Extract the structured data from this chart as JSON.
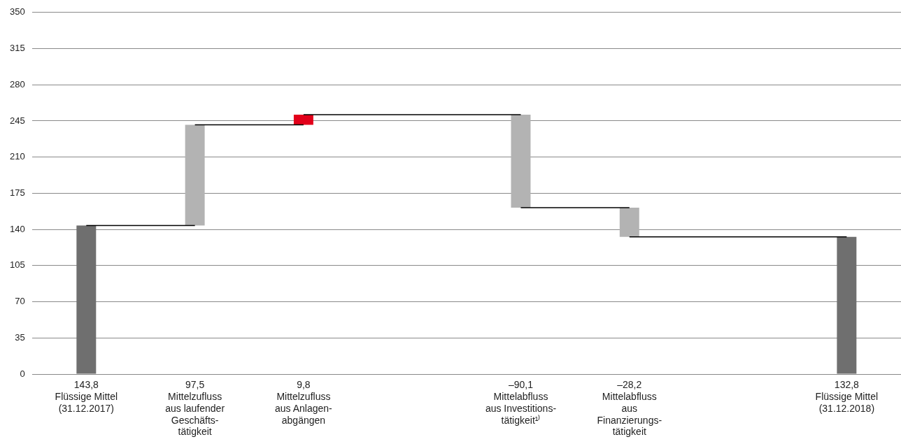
{
  "chart_data": {
    "type": "bar",
    "categories": [
      "Flüssige Mittel\n(31.12.2017)",
      "Mittelzufluss\naus laufender\nGeschäfts-\ntätigkeit",
      "Mittelzufluss\naus Anlagen-\nabgängen",
      null,
      "Mittelabfluss\naus Investitions-\ntätigkeit¹⁾",
      "Mittelabfluss\naus\nFinanzierungs-\ntätigkeit",
      null,
      "Flüssige Mittel\n(31.12.2018)"
    ],
    "series": [
      {
        "type": "bar",
        "values": [
          143.8,
          97.5,
          9.8,
          null,
          -90.1,
          -28.2,
          null,
          132.8
        ],
        "base": [
          0,
          143.8,
          241.3,
          null,
          251.1,
          161,
          null,
          0
        ],
        "colors": [
          "#6f6f6f",
          "#b3b3b3",
          "#e2001a",
          null,
          "#b3b3b3",
          "#b3b3b3",
          null,
          "#6f6f6f"
        ],
        "value_labels": [
          "143,8",
          "97,5",
          "9,8",
          null,
          "–90,1",
          "–28,2",
          null,
          "132,8"
        ]
      },
      {
        "type": "line",
        "color": "#000000",
        "values": [
          143.8,
          143.8,
          null,
          null,
          null,
          null,
          null,
          null
        ]
      },
      {
        "type": "line",
        "color": "#000000",
        "values": [
          null,
          241.3,
          241.3,
          null,
          null,
          null,
          null,
          null
        ]
      },
      {
        "type": "line",
        "color": "#000000",
        "values": [
          null,
          null,
          251.1,
          251.1,
          251.1,
          null,
          null,
          null
        ]
      },
      {
        "type": "line",
        "color": "#000000",
        "values": [
          null,
          null,
          null,
          null,
          161,
          161,
          null,
          null
        ]
      },
      {
        "type": "line",
        "color": "#000000",
        "values": [
          null,
          null,
          null,
          null,
          null,
          132.8,
          132.8,
          132.8
        ]
      }
    ],
    "ylim": [
      0,
      350
    ],
    "yticks": [
      0,
      35,
      70,
      105,
      140,
      175,
      210,
      245,
      280,
      315,
      350
    ],
    "grid": "y",
    "legend": false,
    "marker": "none"
  }
}
